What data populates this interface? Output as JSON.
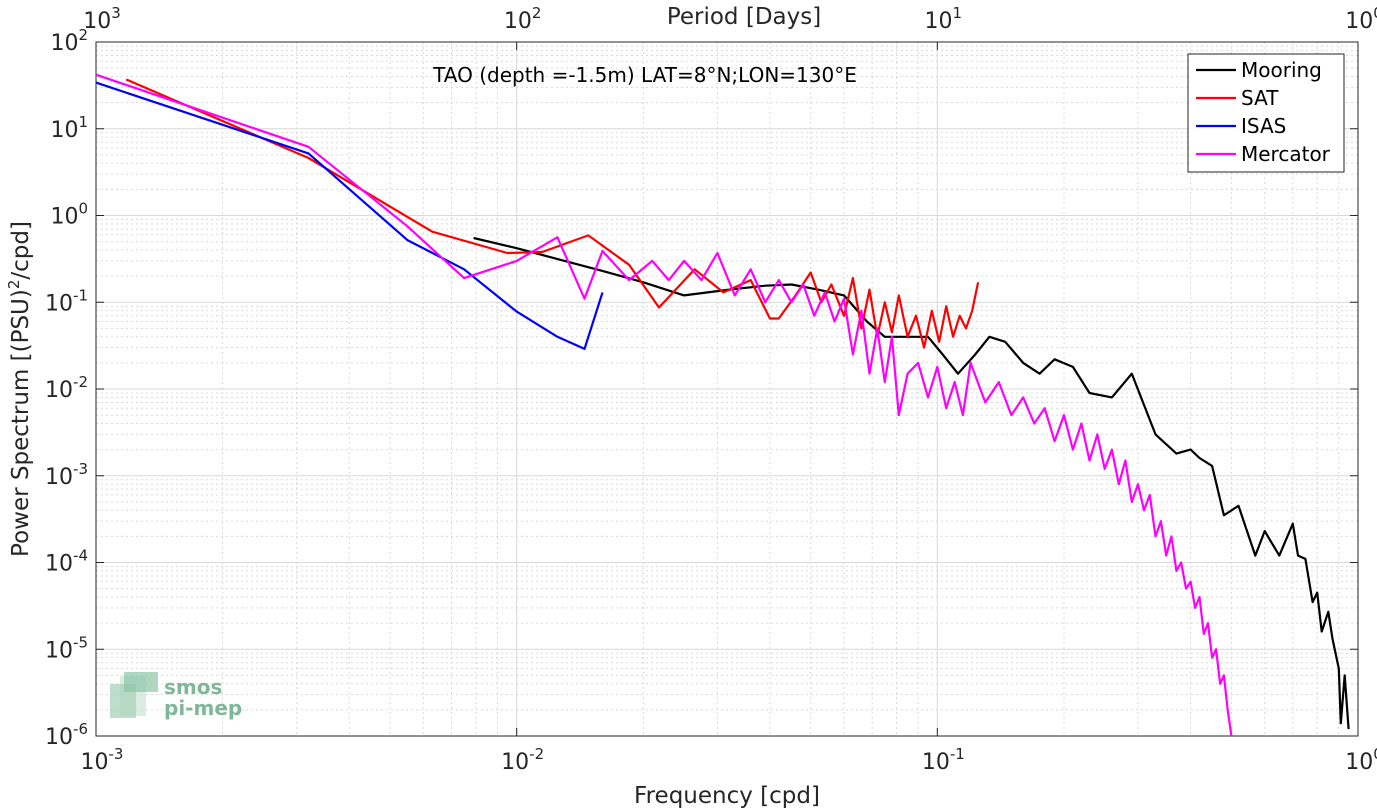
{
  "chart_data": {
    "type": "line",
    "title": "TAO (depth =-1.5m) LAT=8°N;LON=130°E",
    "xlabel": "Frequency [cpd]",
    "ylabel": "Power Spectrum [(PSU)²/cpd]",
    "ylabel_parts": {
      "before": "Power Spectrum [(PSU)",
      "sup": "2",
      "after": "/cpd]"
    },
    "top_xlabel": "Period [Days]",
    "x_scale": "log",
    "y_scale": "log",
    "xlim": [
      0.001,
      1
    ],
    "ylim": [
      1e-06,
      100
    ],
    "grid": true,
    "legend_position": "top-right",
    "x_ticks": [
      {
        "value": 0.001,
        "base": "10",
        "exp": "-3"
      },
      {
        "value": 0.01,
        "base": "10",
        "exp": "-2"
      },
      {
        "value": 0.1,
        "base": "10",
        "exp": "-1"
      },
      {
        "value": 1,
        "base": "10",
        "exp": "0"
      }
    ],
    "top_x_ticks": [
      {
        "value": 0.001,
        "base": "10",
        "exp": "3"
      },
      {
        "value": 0.01,
        "base": "10",
        "exp": "2"
      },
      {
        "value": 0.1,
        "base": "10",
        "exp": "1"
      },
      {
        "value": 1,
        "base": "10",
        "exp": "0"
      }
    ],
    "y_ticks": [
      {
        "value": 1e-06,
        "base": "10",
        "exp": "-6"
      },
      {
        "value": 1e-05,
        "base": "10",
        "exp": "-5"
      },
      {
        "value": 0.0001,
        "base": "10",
        "exp": "-4"
      },
      {
        "value": 0.001,
        "base": "10",
        "exp": "-3"
      },
      {
        "value": 0.01,
        "base": "10",
        "exp": "-2"
      },
      {
        "value": 0.1,
        "base": "10",
        "exp": "-1"
      },
      {
        "value": 1,
        "base": "10",
        "exp": "0"
      },
      {
        "value": 10,
        "base": "10",
        "exp": "1"
      },
      {
        "value": 100,
        "base": "10",
        "exp": "2"
      }
    ],
    "series": [
      {
        "name": "Mooring",
        "color": "#000000",
        "x": [
          0.0079,
          0.01,
          0.013,
          0.016,
          0.02,
          0.025,
          0.032,
          0.039,
          0.045,
          0.052,
          0.06,
          0.068,
          0.075,
          0.085,
          0.095,
          0.103,
          0.112,
          0.123,
          0.133,
          0.145,
          0.16,
          0.175,
          0.19,
          0.21,
          0.23,
          0.26,
          0.29,
          0.33,
          0.37,
          0.4,
          0.42,
          0.45,
          0.48,
          0.52,
          0.57,
          0.6,
          0.65,
          0.7,
          0.72,
          0.75,
          0.78,
          0.8,
          0.82,
          0.85,
          0.87,
          0.9,
          0.91,
          0.93,
          0.95
        ],
        "y": [
          0.55,
          0.42,
          0.3,
          0.23,
          0.17,
          0.12,
          0.14,
          0.155,
          0.16,
          0.14,
          0.12,
          0.06,
          0.04,
          0.04,
          0.04,
          0.025,
          0.015,
          0.025,
          0.04,
          0.035,
          0.02,
          0.015,
          0.022,
          0.018,
          0.009,
          0.008,
          0.015,
          0.003,
          0.0018,
          0.002,
          0.0016,
          0.0013,
          0.00035,
          0.00045,
          0.00012,
          0.00023,
          0.00012,
          0.00028,
          0.00012,
          0.00011,
          3.5e-05,
          4.5e-05,
          1.6e-05,
          2.7e-05,
          1.3e-05,
          6e-06,
          1.4e-06,
          5e-06,
          1.2e-06
        ]
      },
      {
        "name": "SAT",
        "color": "#ff0000",
        "x": [
          0.00118,
          0.0032,
          0.0063,
          0.0095,
          0.0115,
          0.0148,
          0.0185,
          0.0218,
          0.0265,
          0.031,
          0.036,
          0.04,
          0.042,
          0.046,
          0.05,
          0.053,
          0.056,
          0.06,
          0.063,
          0.066,
          0.069,
          0.072,
          0.075,
          0.078,
          0.081,
          0.085,
          0.089,
          0.093,
          0.097,
          0.101,
          0.105,
          0.109,
          0.113,
          0.117,
          0.121,
          0.125
        ],
        "y": [
          37,
          4.6,
          0.65,
          0.37,
          0.38,
          0.59,
          0.27,
          0.087,
          0.24,
          0.13,
          0.18,
          0.065,
          0.065,
          0.12,
          0.22,
          0.1,
          0.16,
          0.07,
          0.19,
          0.05,
          0.14,
          0.04,
          0.1,
          0.045,
          0.12,
          0.04,
          0.07,
          0.03,
          0.08,
          0.035,
          0.09,
          0.04,
          0.07,
          0.05,
          0.08,
          0.17
        ]
      },
      {
        "name": "ISAS",
        "color": "#0000ff",
        "x": [
          0.001,
          0.0032,
          0.0055,
          0.0075,
          0.01,
          0.0125,
          0.0145,
          0.016
        ],
        "y": [
          34,
          5.2,
          0.52,
          0.24,
          0.078,
          0.04,
          0.029,
          0.13
        ]
      },
      {
        "name": "Mercator",
        "color": "#ff00ff",
        "x": [
          0.001,
          0.0032,
          0.0055,
          0.0075,
          0.01,
          0.0125,
          0.0145,
          0.016,
          0.0185,
          0.021,
          0.023,
          0.025,
          0.0275,
          0.03,
          0.033,
          0.036,
          0.039,
          0.042,
          0.045,
          0.048,
          0.051,
          0.054,
          0.057,
          0.06,
          0.063,
          0.066,
          0.069,
          0.072,
          0.075,
          0.078,
          0.081,
          0.085,
          0.09,
          0.095,
          0.1,
          0.105,
          0.11,
          0.115,
          0.12,
          0.13,
          0.14,
          0.15,
          0.16,
          0.17,
          0.18,
          0.19,
          0.2,
          0.21,
          0.22,
          0.23,
          0.24,
          0.25,
          0.26,
          0.27,
          0.28,
          0.29,
          0.3,
          0.31,
          0.32,
          0.33,
          0.34,
          0.35,
          0.36,
          0.37,
          0.38,
          0.39,
          0.4,
          0.41,
          0.42,
          0.43,
          0.44,
          0.45,
          0.46,
          0.47,
          0.48,
          0.49,
          0.5
        ],
        "y": [
          42,
          6.2,
          0.75,
          0.19,
          0.3,
          0.56,
          0.11,
          0.39,
          0.18,
          0.3,
          0.18,
          0.3,
          0.18,
          0.37,
          0.12,
          0.24,
          0.1,
          0.18,
          0.1,
          0.16,
          0.07,
          0.13,
          0.06,
          0.11,
          0.025,
          0.08,
          0.015,
          0.05,
          0.012,
          0.04,
          0.005,
          0.015,
          0.02,
          0.008,
          0.018,
          0.006,
          0.012,
          0.005,
          0.02,
          0.007,
          0.012,
          0.005,
          0.008,
          0.004,
          0.006,
          0.0025,
          0.005,
          0.002,
          0.004,
          0.0015,
          0.003,
          0.0012,
          0.002,
          0.0008,
          0.0015,
          0.0005,
          0.0008,
          0.0004,
          0.0006,
          0.0002,
          0.0003,
          0.00012,
          0.0002,
          8e-05,
          0.0001,
          5e-05,
          6e-05,
          3e-05,
          4e-05,
          1.5e-05,
          2e-05,
          8e-06,
          1e-05,
          4e-06,
          5e-06,
          2e-06,
          1e-06
        ]
      }
    ]
  },
  "logo": {
    "line1": "smos",
    "line2": "pi-mep"
  }
}
